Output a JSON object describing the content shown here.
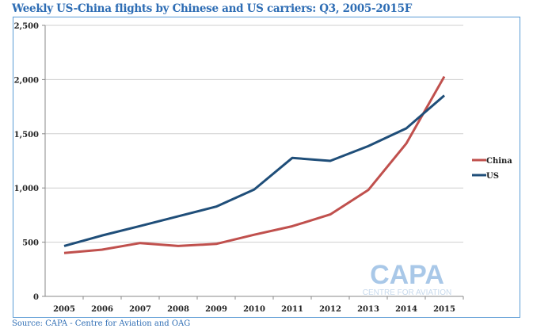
{
  "chart_data": {
    "type": "line",
    "title": "Weekly US-China flights by Chinese and US carriers: Q3, 2005-2015F",
    "xlabel": "",
    "ylabel": "",
    "categories": [
      "2005",
      "2006",
      "2007",
      "2008",
      "2009",
      "2010",
      "2011",
      "2012",
      "2013",
      "2014",
      "2015"
    ],
    "series": [
      {
        "name": "China",
        "color": "#c0504d",
        "values": [
          400,
          431,
          492,
          465,
          484,
          569,
          647,
          756,
          981,
          1410,
          2028
        ]
      },
      {
        "name": "US",
        "color": "#1f4e79",
        "values": [
          465,
          562,
          649,
          739,
          828,
          986,
          1277,
          1250,
          1386,
          1550,
          1853
        ]
      }
    ],
    "ylim": [
      0,
      2500
    ],
    "yticks": [
      0,
      500,
      1000,
      1500,
      2000,
      2500
    ],
    "ytick_labels": [
      "0",
      "500",
      "1,000",
      "1,500",
      "2,000",
      "2,500"
    ],
    "grid": true,
    "legend_position": "right"
  },
  "source": "Source: CAPA - Centre for Aviation and OAG",
  "watermark": {
    "brand": "CAPA",
    "tagline": "CENTRE FOR AVIATION"
  }
}
